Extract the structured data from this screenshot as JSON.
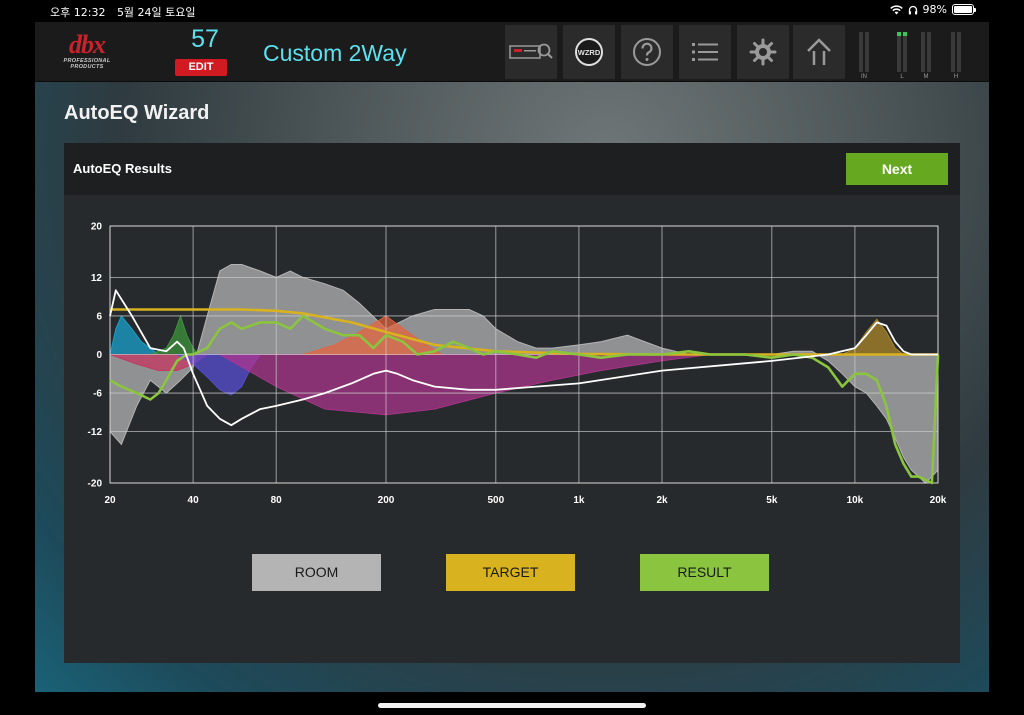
{
  "status_bar": {
    "time": "오후 12:32",
    "date": "5월 24일 토요일",
    "battery": "98%",
    "battery_level": 0.98
  },
  "toolbar": {
    "logo_text": "dbx",
    "logo_sub": "PROFESSIONAL PRODUCTS",
    "preset_number": "57",
    "edit_label": "EDIT",
    "preset_name": "Custom 2Way",
    "wizard_label": "WZRD",
    "meter_labels": [
      "IN",
      "L",
      "M",
      "H"
    ]
  },
  "wizard": {
    "title": "AutoEQ Wizard",
    "panel_title": "AutoEQ Results",
    "next_label": "Next"
  },
  "legend": {
    "room_label": "ROOM",
    "target_label": "TARGET",
    "result_label": "RESULT"
  },
  "colors": {
    "room": "#b4b4b4",
    "target": "#d8b21f",
    "result": "#8bc53f",
    "accent_cyan": "#5ce1ef",
    "edit_red": "#d11a22",
    "next_green": "#66a81f"
  },
  "chart_data": {
    "type": "line",
    "xscale": "log",
    "xlim": [
      20,
      20000
    ],
    "ylim": [
      -20,
      20
    ],
    "grid": true,
    "x_ticks": [
      20,
      40,
      80,
      200,
      500,
      1000,
      2000,
      5000,
      10000,
      20000
    ],
    "x_tick_labels": [
      "20",
      "40",
      "80",
      "200",
      "500",
      "1k",
      "2k",
      "5k",
      "10k",
      "20k"
    ],
    "y_ticks": [
      20,
      12,
      6,
      0,
      -6,
      -12,
      -20
    ],
    "y_tick_labels": [
      "20",
      "12",
      "6",
      "0",
      "-6",
      "-12",
      "-20"
    ],
    "series": [
      {
        "role": "room",
        "color": "#b4b4b4",
        "style": "filled-area",
        "x": [
          20,
          22,
          25,
          28,
          32,
          36,
          40,
          45,
          50,
          55,
          60,
          70,
          80,
          90,
          100,
          120,
          140,
          160,
          200,
          250,
          300,
          350,
          400,
          450,
          500,
          600,
          700,
          800,
          1000,
          1200,
          1500,
          2000,
          2500,
          3000,
          4000,
          5000,
          6000,
          7000,
          8000,
          9000,
          10000,
          11000,
          12000,
          13000,
          14000,
          15000,
          16000,
          17000,
          18000,
          19000,
          20000
        ],
        "y": [
          -12,
          -14,
          -8,
          -4,
          -6,
          -4,
          -2,
          6,
          13,
          14,
          14,
          13,
          12,
          13,
          12,
          11,
          10,
          8,
          4,
          6,
          7,
          7,
          7,
          6,
          4,
          2,
          1,
          1,
          1.5,
          2,
          3,
          1,
          0,
          0,
          0,
          0,
          0.5,
          0.5,
          -1,
          -3,
          -5,
          -6,
          -8,
          -10,
          -13,
          -16,
          -18,
          -19,
          -20,
          -19,
          -18
        ]
      },
      {
        "role": "target",
        "color": "#d8b21f",
        "style": "line",
        "x": [
          20,
          30,
          40,
          60,
          80,
          100,
          150,
          200,
          300,
          500,
          1000,
          2000,
          5000,
          8000,
          10000,
          20000
        ],
        "y": [
          7,
          7,
          7,
          7,
          6.8,
          6.4,
          5,
          3.5,
          1.5,
          0.5,
          0.1,
          0,
          0,
          0,
          0,
          0
        ]
      },
      {
        "role": "result",
        "color": "#8bc53f",
        "style": "line",
        "x": [
          20,
          22,
          25,
          28,
          30,
          32,
          35,
          38,
          40,
          45,
          50,
          55,
          60,
          70,
          80,
          90,
          100,
          120,
          140,
          160,
          180,
          200,
          230,
          260,
          300,
          350,
          400,
          450,
          500,
          600,
          700,
          800,
          1000,
          1200,
          1500,
          2000,
          2500,
          3000,
          4000,
          5000,
          6000,
          7000,
          8000,
          9000,
          10000,
          11000,
          12000,
          13000,
          14000,
          15000,
          16000,
          17000,
          18000,
          19000,
          20000
        ],
        "y": [
          -4,
          -5,
          -6,
          -7,
          -6,
          -4,
          -1,
          0,
          0,
          1,
          4,
          5,
          4,
          5,
          5,
          4,
          6,
          4,
          3,
          3,
          1,
          3,
          2,
          0,
          0.5,
          2,
          1,
          0,
          0.5,
          0,
          -0.5,
          0.5,
          0,
          -0.5,
          0,
          0,
          0.5,
          0,
          0,
          -0.5,
          0,
          -0.5,
          -2,
          -5,
          -3,
          -3,
          -4,
          -8,
          -14,
          -17,
          -19,
          -19,
          -19.5,
          -20,
          0
        ]
      },
      {
        "role": "eq-curve",
        "color": "#ffffff",
        "style": "line",
        "x": [
          20,
          21,
          24,
          28,
          32,
          35,
          37,
          40,
          45,
          50,
          55,
          60,
          70,
          80,
          100,
          120,
          150,
          180,
          200,
          220,
          250,
          300,
          400,
          500,
          700,
          1000,
          2000,
          5000,
          8000,
          10000,
          11000,
          12000,
          13000,
          14000,
          15000,
          16000,
          18000,
          20000
        ],
        "y": [
          6,
          10,
          6,
          1,
          0.5,
          2,
          1,
          -3,
          -8,
          -10,
          -11,
          -10,
          -8.5,
          -8,
          -7,
          -6,
          -4.5,
          -3,
          -2.5,
          -3,
          -4,
          -5,
          -5.5,
          -5.5,
          -5,
          -4.5,
          -2.5,
          -1,
          0,
          1,
          3,
          5,
          4.5,
          2,
          0.5,
          0,
          0,
          0
        ]
      }
    ],
    "filter_bands": [
      {
        "color": "#19a6d3",
        "x": [
          20,
          21,
          22,
          24,
          26,
          28,
          30
        ],
        "y": [
          0,
          4,
          6,
          4,
          2,
          1,
          0
        ]
      },
      {
        "color": "#3f9a3c",
        "x": [
          28,
          32,
          34,
          36,
          38,
          40,
          42
        ],
        "y": [
          0,
          1,
          3,
          6,
          3,
          1,
          0
        ]
      },
      {
        "color": "#c6325d",
        "x": [
          20,
          25,
          30,
          35,
          40,
          45
        ],
        "y": [
          0,
          -1.5,
          -2.5,
          -2.5,
          -1.5,
          0
        ]
      },
      {
        "color": "#5a4fd9",
        "x": [
          35,
          40,
          45,
          50,
          55,
          60,
          65,
          70
        ],
        "y": [
          0,
          -1.5,
          -3.5,
          -5.5,
          -6.3,
          -5,
          -2,
          0
        ]
      },
      {
        "color": "#b0368f",
        "x": [
          50,
          80,
          120,
          200,
          300,
          500,
          800,
          1200,
          2000,
          3000
        ],
        "y": [
          0,
          -5,
          -8.5,
          -9.4,
          -8.5,
          -6,
          -4,
          -2.5,
          -1,
          0
        ]
      },
      {
        "color": "#e8623c",
        "x": [
          100,
          130,
          160,
          200,
          240,
          280,
          320
        ],
        "y": [
          0,
          1.5,
          3.5,
          6,
          3.5,
          1.5,
          0
        ]
      },
      {
        "color": "#b08a2a",
        "x": [
          9000,
          10000,
          11000,
          12000,
          13000,
          14000,
          15000
        ],
        "y": [
          0,
          1,
          3.5,
          5.5,
          3.5,
          1,
          0
        ]
      }
    ]
  }
}
